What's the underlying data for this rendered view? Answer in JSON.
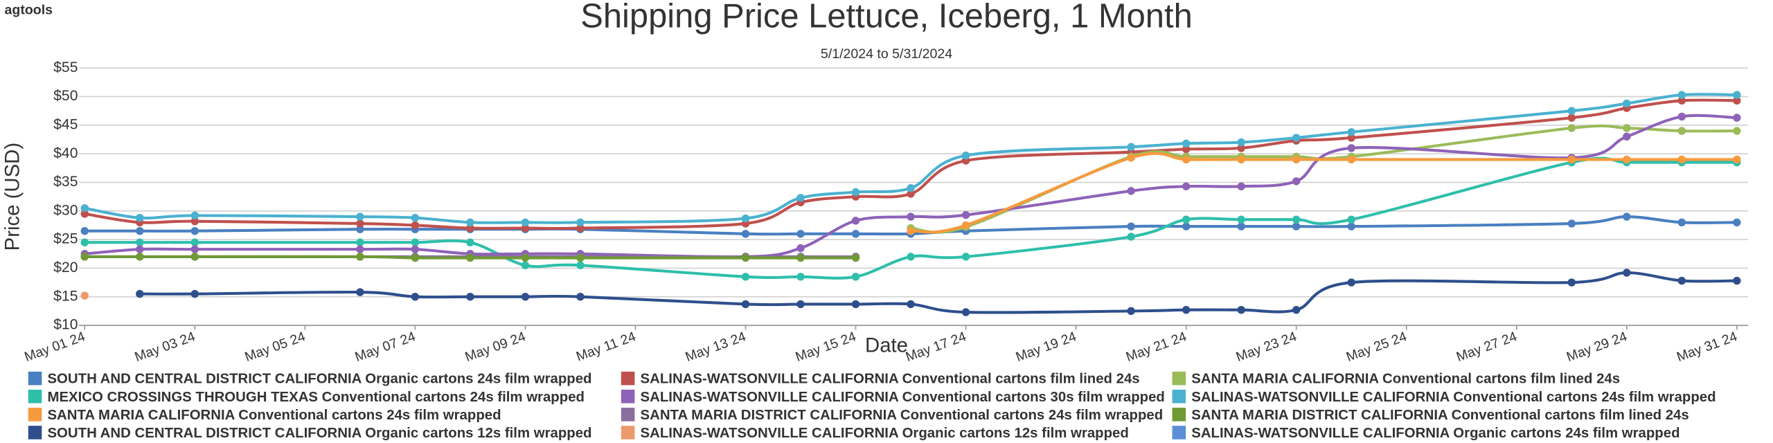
{
  "brand": "agtools",
  "chart_data": {
    "type": "line",
    "title": "Shipping Price  Lettuce, Iceberg, 1 Month",
    "subtitle": "5/1/2024 to 5/31/2024",
    "x_label": "Date",
    "y_label": "Price (USD)",
    "x": [
      "2024-05-01",
      "2024-05-02",
      "2024-05-03",
      "2024-05-06",
      "2024-05-07",
      "2024-05-08",
      "2024-05-09",
      "2024-05-10",
      "2024-05-13",
      "2024-05-14",
      "2024-05-15",
      "2024-05-16",
      "2024-05-17",
      "2024-05-20",
      "2024-05-21",
      "2024-05-22",
      "2024-05-23",
      "2024-05-24",
      "2024-05-28",
      "2024-05-29",
      "2024-05-30",
      "2024-05-31"
    ],
    "xlim": [
      "2024-05-01",
      "2024-05-31"
    ],
    "xticks": [
      {
        "value": "2024-05-01",
        "label": "May 01 24"
      },
      {
        "value": "2024-05-03",
        "label": "May 03 24"
      },
      {
        "value": "2024-05-05",
        "label": "May 05 24"
      },
      {
        "value": "2024-05-07",
        "label": "May 07 24"
      },
      {
        "value": "2024-05-09",
        "label": "May 09 24"
      },
      {
        "value": "2024-05-11",
        "label": "May 11 24"
      },
      {
        "value": "2024-05-13",
        "label": "May 13 24"
      },
      {
        "value": "2024-05-15",
        "label": "May 15 24"
      },
      {
        "value": "2024-05-17",
        "label": "May 17 24"
      },
      {
        "value": "2024-05-19",
        "label": "May 19 24"
      },
      {
        "value": "2024-05-21",
        "label": "May 21 24"
      },
      {
        "value": "2024-05-23",
        "label": "May 23 24"
      },
      {
        "value": "2024-05-25",
        "label": "May 25 24"
      },
      {
        "value": "2024-05-27",
        "label": "May 27 24"
      },
      {
        "value": "2024-05-29",
        "label": "May 29 24"
      },
      {
        "value": "2024-05-31",
        "label": "May 31 24"
      }
    ],
    "ylim": [
      10,
      55
    ],
    "yticks": [
      {
        "value": 10,
        "label": "$10"
      },
      {
        "value": 15,
        "label": "$15"
      },
      {
        "value": 20,
        "label": "$20"
      },
      {
        "value": 25,
        "label": "$25"
      },
      {
        "value": 30,
        "label": "$30"
      },
      {
        "value": 35,
        "label": "$35"
      },
      {
        "value": 40,
        "label": "$40"
      },
      {
        "value": 45,
        "label": "$45"
      },
      {
        "value": 50,
        "label": "$50"
      },
      {
        "value": 55,
        "label": "$55"
      }
    ],
    "grid": true,
    "series": [
      {
        "name": "SOUTH AND CENTRAL DISTRICT CALIFORNIA Organic cartons 24s film wrapped",
        "color": "#4a7fc1",
        "values": [
          26.5,
          26.5,
          26.5,
          26.8,
          26.8,
          26.8,
          26.8,
          26.8,
          26,
          26,
          26,
          26,
          26.5,
          27.3,
          27.3,
          27.3,
          27.3,
          27.3,
          27.8,
          29,
          28,
          28
        ]
      },
      {
        "name": "SALINAS-WATSONVILLE CALIFORNIA Conventional cartons film lined 24s",
        "color": "#c0504d",
        "values": [
          29.5,
          28,
          28.2,
          27.8,
          27.5,
          27,
          27,
          27,
          27.8,
          31.5,
          32.5,
          33,
          38.8,
          40.3,
          40.8,
          41,
          42.3,
          42.8,
          46.3,
          48,
          49.3,
          49.3
        ]
      },
      {
        "name": "SANTA MARIA CALIFORNIA Conventional cartons film lined 24s",
        "color": "#9bbb59",
        "values": [
          null,
          null,
          null,
          null,
          null,
          null,
          null,
          null,
          null,
          null,
          null,
          27,
          27.2,
          39.5,
          39.5,
          39.5,
          39.5,
          39.5,
          44.5,
          44.5,
          44,
          44
        ]
      },
      {
        "name": "MEXICO CROSSINGS THROUGH TEXAS Conventional cartons 24s film wrapped",
        "color": "#2ebfab",
        "values": [
          24.5,
          24.5,
          24.5,
          24.5,
          24.5,
          24.5,
          20.5,
          20.5,
          18.5,
          18.5,
          18.5,
          22,
          22,
          25.5,
          28.5,
          28.5,
          28.5,
          28.5,
          38.5,
          38.5,
          38.5,
          38.5
        ]
      },
      {
        "name": "SALINAS-WATSONVILLE CALIFORNIA Conventional cartons 30s film wrapped",
        "color": "#8e62b8",
        "values": [
          22.5,
          23.3,
          23.3,
          23.3,
          23.3,
          22.5,
          22.5,
          22.5,
          22,
          23.5,
          28.3,
          29,
          29.3,
          33.5,
          34.3,
          34.3,
          35.2,
          41,
          39.3,
          43,
          46.5,
          46.3
        ]
      },
      {
        "name": "SALINAS-WATSONVILLE CALIFORNIA Conventional cartons 24s film wrapped",
        "color": "#4bb1d0",
        "values": [
          30.5,
          28.8,
          29.2,
          29,
          28.8,
          28,
          28,
          28,
          28.7,
          32.3,
          33.3,
          34,
          39.7,
          41.2,
          41.8,
          42,
          42.8,
          43.8,
          47.5,
          48.8,
          50.3,
          50.3
        ]
      },
      {
        "name": "SANTA MARIA CALIFORNIA Conventional cartons 24s film wrapped",
        "color": "#f79a3e",
        "values": [
          null,
          null,
          null,
          null,
          null,
          null,
          null,
          null,
          null,
          null,
          null,
          26.5,
          27.5,
          39.3,
          39,
          39,
          39,
          39,
          39,
          39,
          39,
          39
        ]
      },
      {
        "name": "SANTA MARIA DISTRICT CALIFORNIA Conventional cartons 24s film wrapped",
        "color": "#8a6e9e",
        "values": [
          22,
          22,
          22,
          22,
          22,
          22,
          22,
          22,
          22,
          22,
          22,
          null,
          null,
          null,
          null,
          null,
          null,
          null,
          null,
          null,
          null,
          null
        ]
      },
      {
        "name": "SANTA MARIA DISTRICT CALIFORNIA Conventional cartons film lined 24s",
        "color": "#6f9a34",
        "values": [
          22,
          22,
          22,
          22,
          21.8,
          21.8,
          21.8,
          21.8,
          21.8,
          21.8,
          21.8,
          null,
          null,
          null,
          null,
          null,
          null,
          null,
          null,
          null,
          null,
          null
        ]
      },
      {
        "name": "SOUTH AND CENTRAL DISTRICT CALIFORNIA Organic cartons 12s film wrapped",
        "color": "#2e4f8c",
        "values": [
          null,
          15.5,
          15.5,
          15.8,
          15,
          15,
          15,
          15,
          13.7,
          13.7,
          13.7,
          13.7,
          12.3,
          12.5,
          12.7,
          12.7,
          12.7,
          17.5,
          17.5,
          19.2,
          17.8,
          17.8
        ]
      },
      {
        "name": "SALINAS-WATSONVILLE CALIFORNIA Organic cartons 12s film wrapped",
        "color": "#eb9a6e",
        "values": [
          15.2,
          null,
          null,
          null,
          null,
          null,
          null,
          null,
          null,
          null,
          null,
          null,
          null,
          null,
          null,
          null,
          null,
          null,
          null,
          null,
          null,
          null
        ]
      },
      {
        "name": "SALINAS-WATSONVILLE CALIFORNIA Organic cartons 24s film wrapped",
        "color": "#5a8fd8",
        "values": [
          null,
          null,
          null,
          null,
          null,
          null,
          null,
          null,
          null,
          null,
          null,
          null,
          null,
          null,
          null,
          null,
          null,
          null,
          null,
          null,
          null,
          null
        ]
      }
    ]
  }
}
